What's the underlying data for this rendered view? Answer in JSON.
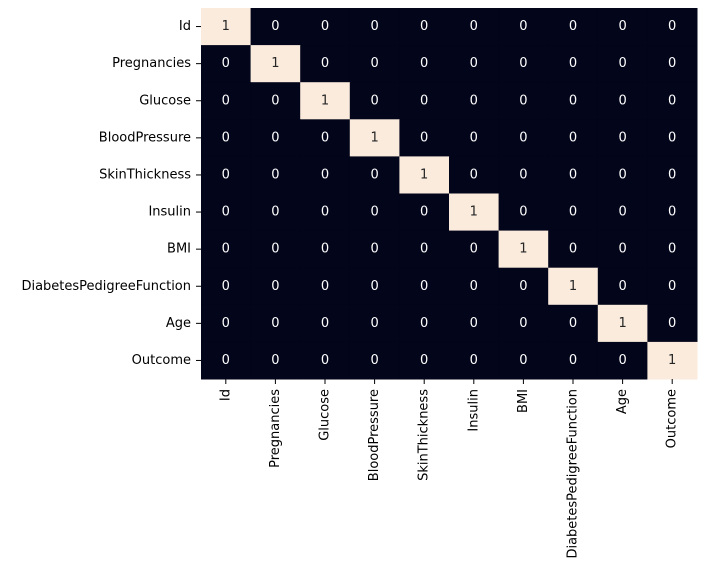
{
  "chart_data": {
    "type": "heatmap",
    "title": "",
    "xlabel": "",
    "ylabel": "",
    "row_labels": [
      "Id",
      "Pregnancies",
      "Glucose",
      "BloodPressure",
      "SkinThickness",
      "Insulin",
      "BMI",
      "DiabetesPedigreeFunction",
      "Age",
      "Outcome"
    ],
    "col_labels": [
      "Id",
      "Pregnancies",
      "Glucose",
      "BloodPressure",
      "SkinThickness",
      "Insulin",
      "BMI",
      "DiabetesPedigreeFunction",
      "Age",
      "Outcome"
    ],
    "values": [
      [
        1,
        0,
        0,
        0,
        0,
        0,
        0,
        0,
        0,
        0
      ],
      [
        0,
        1,
        0,
        0,
        0,
        0,
        0,
        0,
        0,
        0
      ],
      [
        0,
        0,
        1,
        0,
        0,
        0,
        0,
        0,
        0,
        0
      ],
      [
        0,
        0,
        0,
        1,
        0,
        0,
        0,
        0,
        0,
        0
      ],
      [
        0,
        0,
        0,
        0,
        1,
        0,
        0,
        0,
        0,
        0
      ],
      [
        0,
        0,
        0,
        0,
        0,
        1,
        0,
        0,
        0,
        0
      ],
      [
        0,
        0,
        0,
        0,
        0,
        0,
        1,
        0,
        0,
        0
      ],
      [
        0,
        0,
        0,
        0,
        0,
        0,
        0,
        1,
        0,
        0
      ],
      [
        0,
        0,
        0,
        0,
        0,
        0,
        0,
        0,
        1,
        0
      ],
      [
        0,
        0,
        0,
        0,
        0,
        0,
        0,
        0,
        0,
        1
      ]
    ],
    "value_range": [
      0,
      1
    ],
    "annotations": true,
    "colorbar": false,
    "colors": {
      "low": "#03051a",
      "high": "#faebdd",
      "text_on_low": "#ffffff",
      "text_on_high": "#262626",
      "tick_text": "#000000"
    }
  }
}
